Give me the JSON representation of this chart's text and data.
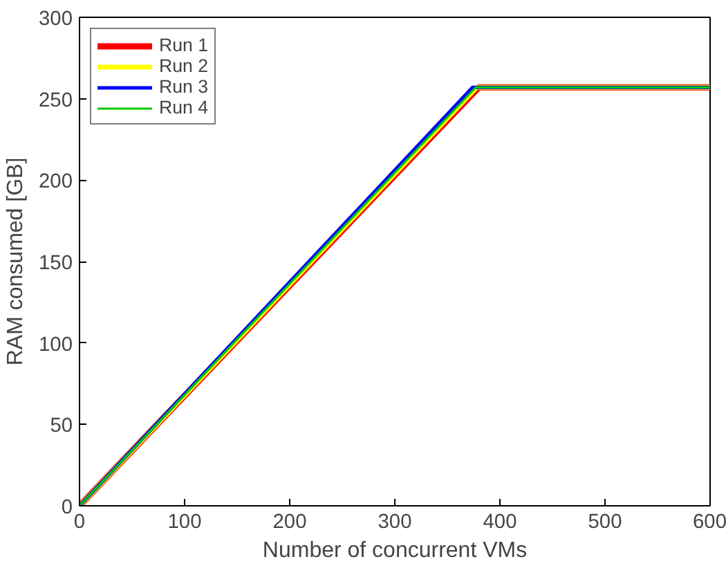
{
  "chart_data": {
    "type": "line",
    "xlabel": "Number of concurrent VMs",
    "ylabel": "RAM consumed [GB]",
    "xlim": [
      0,
      600
    ],
    "ylim": [
      0,
      300
    ],
    "xticks": [
      0,
      100,
      200,
      300,
      400,
      500,
      600
    ],
    "yticks": [
      0,
      50,
      100,
      150,
      200,
      250,
      300
    ],
    "grid": false,
    "legend": "top left",
    "marker": "none",
    "line_style": "solid",
    "series": [
      {
        "name": "Run 1",
        "color": "#ff0000",
        "x": [
          0,
          380,
          600
        ],
        "values": [
          0,
          257,
          257
        ]
      },
      {
        "name": "Run 2",
        "color": "#ffff00",
        "x": [
          0,
          378,
          600
        ],
        "values": [
          0,
          257,
          257
        ]
      },
      {
        "name": "Run 3",
        "color": "#0000ff",
        "x": [
          0,
          374,
          600
        ],
        "values": [
          0,
          257,
          257
        ]
      },
      {
        "name": "Run 4",
        "color": "#00cc00",
        "x": [
          0,
          377,
          600
        ],
        "values": [
          0,
          257,
          257
        ]
      }
    ]
  }
}
